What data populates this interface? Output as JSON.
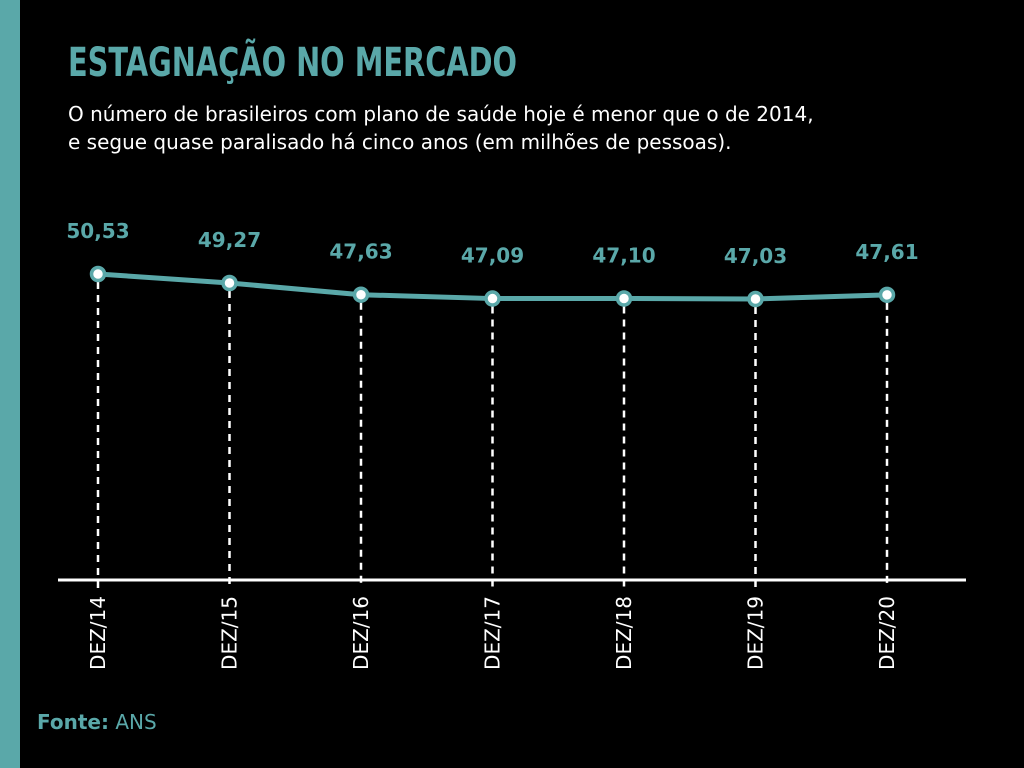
{
  "header": {
    "title": "ESTAGNAÇÃO NO MERCADO",
    "subtitle_line1": "O número de brasileiros com plano de saúde hoje é menor que o de 2014,",
    "subtitle_line2": "e segue quase paralisado há cinco anos (em milhões de pessoas)."
  },
  "footer": {
    "source_label": "Fonte:",
    "source_value": "ANS"
  },
  "colors": {
    "accent": "#5aa8a9",
    "background": "#000000",
    "axis": "#ffffff"
  },
  "chart_data": {
    "type": "line",
    "categories": [
      "DEZ/14",
      "DEZ/15",
      "DEZ/16",
      "DEZ/17",
      "DEZ/18",
      "DEZ/19",
      "DEZ/20"
    ],
    "values": [
      50.53,
      49.27,
      47.63,
      47.09,
      47.1,
      47.03,
      47.61
    ],
    "value_labels": [
      "50,53",
      "49,27",
      "47,63",
      "47,09",
      "47,10",
      "47,03",
      "47,61"
    ],
    "title": "ESTAGNAÇÃO NO MERCADO",
    "xlabel": "",
    "ylabel": "",
    "grid": false,
    "legend": "none"
  }
}
